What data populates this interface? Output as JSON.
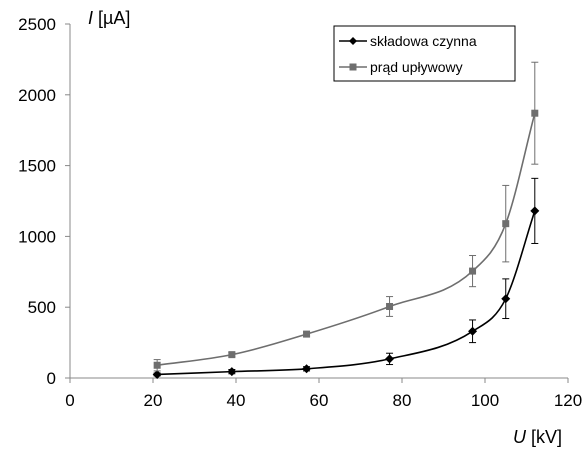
{
  "chart_data": {
    "type": "scatter",
    "xlabel": {
      "var": "U",
      "unit": " [kV]"
    },
    "ylabel": {
      "var": "I",
      "unit": " [µA]"
    },
    "xlim": [
      0,
      120
    ],
    "ylim": [
      0,
      2500
    ],
    "xticks": [
      0,
      20,
      40,
      60,
      80,
      100,
      120
    ],
    "yticks": [
      0,
      500,
      1000,
      1500,
      2000,
      2500
    ],
    "grid": false,
    "legend_position": "top-right",
    "series": [
      {
        "name": "składowa czynna",
        "color": "#000000",
        "marker": "diamond",
        "x": [
          21,
          39,
          57,
          77,
          97,
          105,
          112
        ],
        "y": [
          25,
          45,
          65,
          135,
          330,
          560,
          1180
        ],
        "err": [
          10,
          15,
          15,
          40,
          80,
          140,
          230
        ]
      },
      {
        "name": "prąd upływowy",
        "color": "#6e6e6e",
        "marker": "square",
        "x": [
          21,
          39,
          57,
          77,
          97,
          105,
          112
        ],
        "y": [
          90,
          165,
          310,
          505,
          755,
          1090,
          1870
        ],
        "err": [
          40,
          15,
          15,
          70,
          110,
          270,
          360
        ]
      }
    ]
  }
}
